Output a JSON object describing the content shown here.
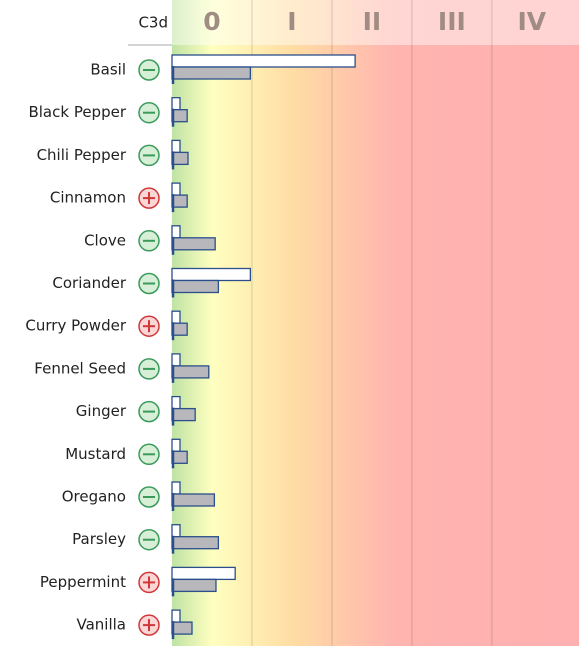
{
  "chart_data": {
    "type": "bar",
    "orientation": "horizontal",
    "header": "C3d",
    "categories": [
      "Basil",
      "Black Pepper",
      "Chili Pepper",
      "Cinnamon",
      "Clove",
      "Coriander",
      "Curry Powder",
      "Fennel Seed",
      "Ginger",
      "Mustard",
      "Oregano",
      "Parsley",
      "Peppermint",
      "Vanilla"
    ],
    "signs": [
      "-",
      "-",
      "-",
      "+",
      "-",
      "-",
      "+",
      "-",
      "-",
      "-",
      "-",
      "-",
      "+",
      "+"
    ],
    "series": [
      {
        "color": "#ffffff",
        "values": [
          2.29,
          0.1,
          0.1,
          0.1,
          0.1,
          0.98,
          0.1,
          0.1,
          0.1,
          0.1,
          0.1,
          0.1,
          0.79,
          0.1
        ]
      },
      {
        "color": "#b8b8bc",
        "values": [
          0.98,
          0.19,
          0.2,
          0.19,
          0.54,
          0.58,
          0.19,
          0.46,
          0.29,
          0.19,
          0.53,
          0.58,
          0.55,
          0.25
        ]
      }
    ],
    "xlim": [
      0,
      5.09
    ],
    "class_bands": [
      {
        "label": "0",
        "from": 0,
        "to": 1
      },
      {
        "label": "I",
        "from": 1,
        "to": 2
      },
      {
        "label": "II",
        "from": 2,
        "to": 3
      },
      {
        "label": "III",
        "from": 3,
        "to": 4
      },
      {
        "label": "IV",
        "from": 4,
        "to": 5
      }
    ]
  }
}
